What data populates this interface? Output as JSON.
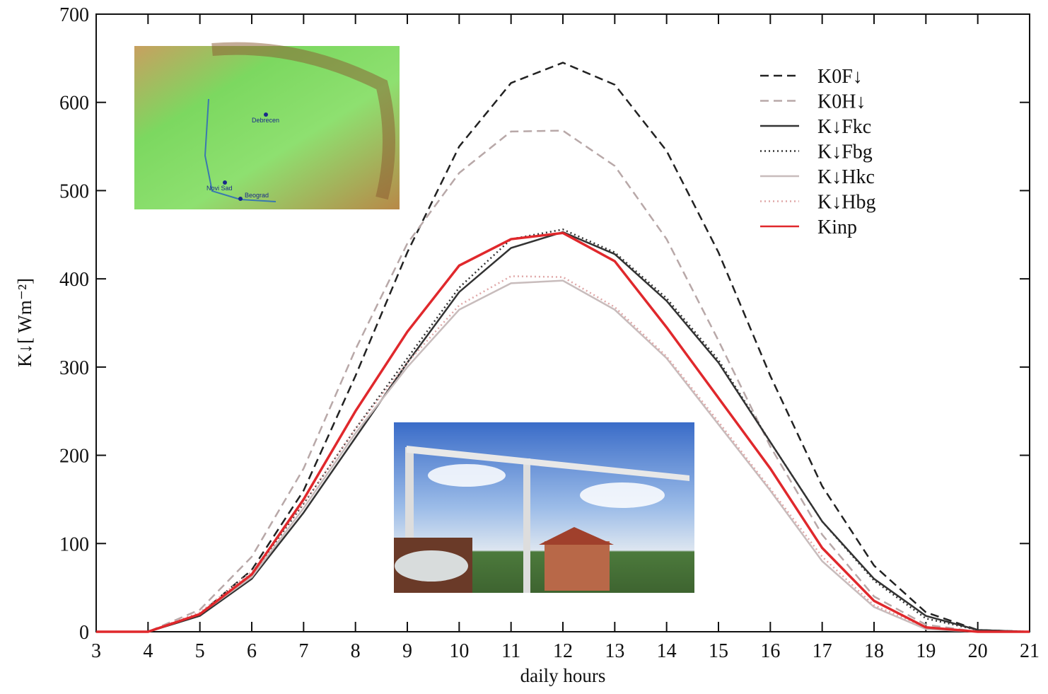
{
  "chart_data": {
    "type": "line",
    "x_label": "daily hours",
    "y_label": "K↓[ Wm⁻²]",
    "x": [
      3,
      4,
      5,
      6,
      7,
      8,
      9,
      10,
      11,
      12,
      13,
      14,
      15,
      16,
      17,
      18,
      19,
      20,
      21
    ],
    "xlim": [
      3,
      21
    ],
    "xticks": [
      3,
      4,
      5,
      6,
      7,
      8,
      9,
      10,
      11,
      12,
      13,
      14,
      15,
      16,
      17,
      18,
      19,
      20,
      21
    ],
    "ylim": [
      0,
      700
    ],
    "yticks": [
      0,
      100,
      200,
      300,
      400,
      500,
      600,
      700
    ],
    "grid": false,
    "legend": "upper right",
    "map_labels": [
      "Debrecen",
      "Novi Sad",
      "Beograd"
    ],
    "series": [
      {
        "name": "K0F↓",
        "color": "#222222",
        "style": "dashed",
        "values": [
          0,
          0,
          20,
          70,
          160,
          290,
          430,
          550,
          622,
          645,
          620,
          545,
          430,
          290,
          165,
          75,
          22,
          2,
          0
        ]
      },
      {
        "name": "K0H↓",
        "color": "#b8a8a8",
        "style": "dashed",
        "values": [
          0,
          0,
          25,
          85,
          185,
          320,
          440,
          520,
          567,
          568,
          528,
          445,
          330,
          210,
          110,
          40,
          8,
          0,
          0
        ]
      },
      {
        "name": "K↓Fkc",
        "color": "#333333",
        "style": "solid",
        "values": [
          0,
          0,
          18,
          60,
          135,
          220,
          305,
          385,
          435,
          453,
          428,
          375,
          305,
          215,
          125,
          60,
          18,
          2,
          0
        ]
      },
      {
        "name": "K↓Fbg",
        "color": "#333333",
        "style": "dotted",
        "values": [
          0,
          0,
          20,
          65,
          145,
          230,
          310,
          390,
          445,
          456,
          430,
          378,
          308,
          215,
          125,
          58,
          15,
          2,
          0
        ]
      },
      {
        "name": "K↓Hkc",
        "color": "#c8bcbc",
        "style": "solid",
        "values": [
          0,
          0,
          20,
          62,
          140,
          225,
          300,
          365,
          395,
          398,
          365,
          310,
          235,
          160,
          80,
          28,
          3,
          0,
          0
        ]
      },
      {
        "name": "K↓Hbg",
        "color": "#e0a8a8",
        "style": "dotted",
        "values": [
          0,
          0,
          22,
          68,
          145,
          230,
          305,
          370,
          403,
          402,
          368,
          312,
          238,
          162,
          85,
          30,
          5,
          0,
          0
        ]
      },
      {
        "name": "Kinp",
        "color": "#e0282c",
        "style": "solid",
        "values": [
          0,
          0,
          20,
          65,
          150,
          250,
          340,
          415,
          445,
          452,
          420,
          345,
          265,
          185,
          95,
          35,
          5,
          0,
          0
        ]
      }
    ]
  }
}
